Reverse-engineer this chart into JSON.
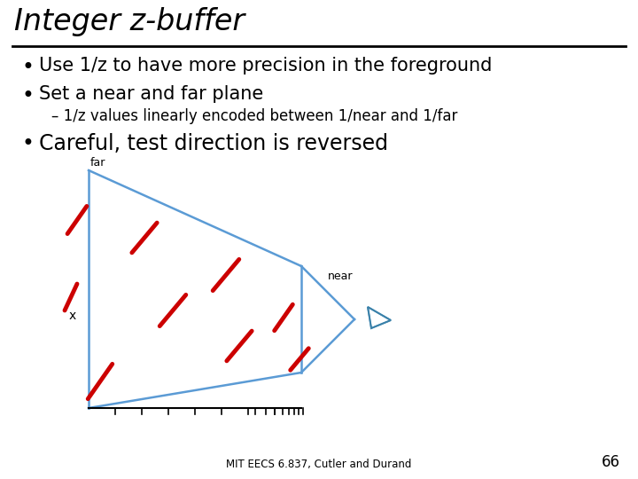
{
  "title": "Integer z-buffer",
  "bullet1": "Use 1/z to have more precision in the foreground",
  "bullet2": "Set a near and far plane",
  "sub_bullet": "– 1/z values linearly encoded between 1/near and 1/far",
  "bullet3": "Careful, test direction is reversed",
  "footer": "MIT EECS 6.837, Cutler and Durand",
  "page_num": "66",
  "bg_color": "#ffffff",
  "title_color": "#000000",
  "text_color": "#000000",
  "line_color": "#5b9bd5",
  "red_color": "#cc0000",
  "label_far": "far",
  "label_near": "near",
  "label_x": "x",
  "title_fontsize": 24,
  "bullet_fontsize": 15,
  "sub_fontsize": 12
}
